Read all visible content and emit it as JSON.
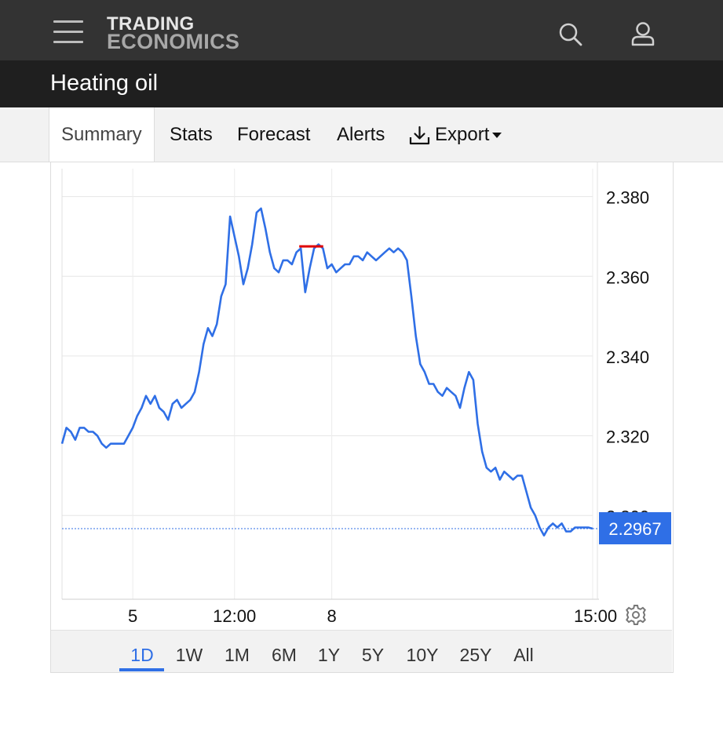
{
  "header": {
    "logo_line1": "TRADING",
    "logo_line2": "ECONOMICS"
  },
  "title": "Heating oil",
  "tabs": [
    {
      "label": "Summary",
      "active": true
    },
    {
      "label": "Stats"
    },
    {
      "label": "Forecast"
    },
    {
      "label": "Alerts"
    },
    {
      "label": "Export",
      "icon": "download-icon",
      "dropdown": true
    }
  ],
  "ranges": [
    {
      "label": "1D",
      "active": true
    },
    {
      "label": "1W"
    },
    {
      "label": "1M"
    },
    {
      "label": "6M"
    },
    {
      "label": "1Y"
    },
    {
      "label": "5Y"
    },
    {
      "label": "10Y"
    },
    {
      "label": "25Y"
    },
    {
      "label": "All"
    }
  ],
  "colors": {
    "line": "#2f6fe6",
    "marker": "#e00000",
    "price_badge": "#2f6fe6",
    "topbar": "#333333",
    "titlebar": "#1f1f1f"
  },
  "chart_data": {
    "type": "line",
    "x_tick_labels": [
      "5",
      "12:00",
      "8",
      "15:00"
    ],
    "y_ticks": [
      2.38,
      2.36,
      2.34,
      2.32,
      2.3
    ],
    "y_tick_labels": [
      "2.380",
      "2.360",
      "2.340",
      "2.320",
      "2.300"
    ],
    "ylim": [
      2.279,
      2.387
    ],
    "current_value": 2.2967,
    "current_label": "2.2967",
    "marker_value": 2.3675,
    "grid": true,
    "series": [
      {
        "x": [
          0,
          1,
          2,
          3,
          4,
          5,
          6,
          7,
          8,
          9,
          10,
          11,
          12,
          13,
          14,
          15,
          16,
          17,
          18,
          19,
          20,
          21,
          22,
          23,
          24,
          25,
          26,
          27,
          28,
          29,
          30,
          31,
          32,
          33,
          34,
          35,
          36,
          37,
          38,
          39,
          40,
          41,
          42,
          43,
          44,
          45,
          46,
          47,
          48,
          49,
          50,
          51,
          52,
          53,
          54,
          55,
          56,
          57,
          58,
          59,
          60,
          61,
          62,
          63,
          64,
          65,
          66,
          67,
          68,
          69,
          70,
          71,
          72,
          73,
          74,
          75,
          76,
          77,
          78,
          79,
          80,
          81,
          82,
          83,
          84,
          85,
          86,
          87,
          88,
          89,
          90,
          91,
          92,
          93,
          94,
          95,
          96,
          97,
          98,
          99,
          100,
          101,
          102,
          103,
          104,
          105,
          106,
          107,
          108,
          109,
          110,
          111,
          112,
          113,
          114,
          115,
          116,
          117,
          118,
          119,
          120
        ],
        "values": [
          2.318,
          2.322,
          2.321,
          2.319,
          2.322,
          2.322,
          2.321,
          2.321,
          2.32,
          2.318,
          2.317,
          2.318,
          2.318,
          2.318,
          2.318,
          2.32,
          2.322,
          2.325,
          2.327,
          2.33,
          2.328,
          2.33,
          2.327,
          2.326,
          2.324,
          2.328,
          2.329,
          2.327,
          2.328,
          2.329,
          2.331,
          2.336,
          2.343,
          2.347,
          2.345,
          2.348,
          2.355,
          2.358,
          2.375,
          2.37,
          2.365,
          2.358,
          2.362,
          2.368,
          2.376,
          2.377,
          2.372,
          2.366,
          2.362,
          2.361,
          2.364,
          2.364,
          2.363,
          2.366,
          2.367,
          2.356,
          2.362,
          2.367,
          2.368,
          2.367,
          2.362,
          2.363,
          2.361,
          2.362,
          2.363,
          2.363,
          2.365,
          2.365,
          2.364,
          2.366,
          2.365,
          2.364,
          2.365,
          2.366,
          2.367,
          2.366,
          2.367,
          2.366,
          2.364,
          2.355,
          2.345,
          2.338,
          2.336,
          2.333,
          2.333,
          2.331,
          2.33,
          2.332,
          2.331,
          2.33,
          2.327,
          2.332,
          2.336,
          2.334,
          2.323,
          2.316,
          2.312,
          2.311,
          2.312,
          2.309,
          2.311,
          2.31,
          2.309,
          2.31,
          2.31,
          2.306,
          2.302,
          2.3,
          2.297,
          2.295,
          2.297,
          2.298,
          2.297,
          2.298,
          2.296,
          2.296,
          2.297,
          2.297,
          2.297,
          2.297,
          2.2967
        ]
      }
    ]
  }
}
